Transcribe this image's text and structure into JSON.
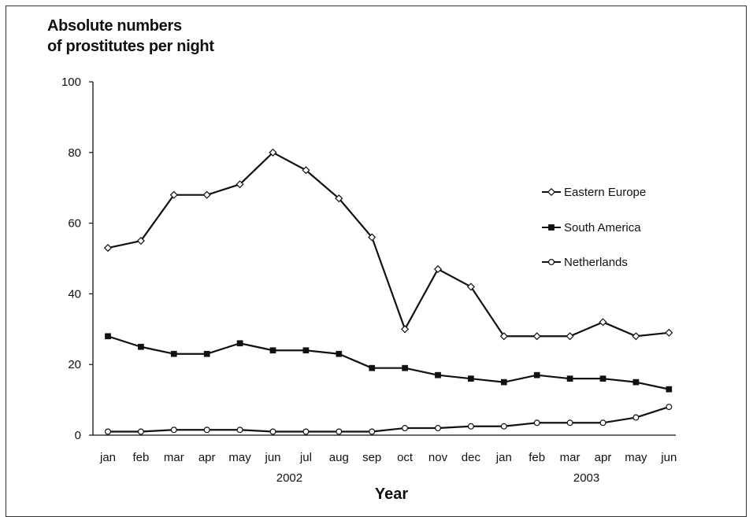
{
  "chart_data": {
    "type": "line",
    "title": "",
    "ylabel_lines": [
      "Absolute numbers",
      "of prostitutes per night"
    ],
    "xlabel": "Year",
    "ylim": [
      0,
      100
    ],
    "yticks": [
      0,
      20,
      40,
      60,
      80,
      100
    ],
    "categories": [
      "jan",
      "feb",
      "mar",
      "apr",
      "may",
      "jun",
      "jul",
      "aug",
      "sep",
      "oct",
      "nov",
      "dec",
      "jan",
      "feb",
      "mar",
      "apr",
      "may",
      "jun"
    ],
    "year_labels": [
      {
        "label": "2002",
        "from": 0,
        "to": 11
      },
      {
        "label": "2003",
        "from": 12,
        "to": 17
      }
    ],
    "legend_position": "right",
    "series": [
      {
        "name": "Eastern Europe",
        "marker": "diamond-open",
        "color": "#111111",
        "values": [
          53,
          55,
          68,
          68,
          71,
          80,
          75,
          67,
          56,
          30,
          47,
          42,
          28,
          28,
          28,
          32,
          28,
          29
        ]
      },
      {
        "name": "South America",
        "marker": "square-filled",
        "color": "#111111",
        "values": [
          28,
          25,
          23,
          23,
          26,
          24,
          24,
          23,
          19,
          19,
          17,
          16,
          15,
          17,
          16,
          16,
          15,
          13
        ]
      },
      {
        "name": "Netherlands",
        "marker": "circle-open",
        "color": "#111111",
        "values": [
          1,
          1,
          1.5,
          1.5,
          1.5,
          1,
          1,
          1,
          1,
          2,
          2,
          2.5,
          2.5,
          3.5,
          3.5,
          3.5,
          5,
          8
        ]
      }
    ]
  }
}
